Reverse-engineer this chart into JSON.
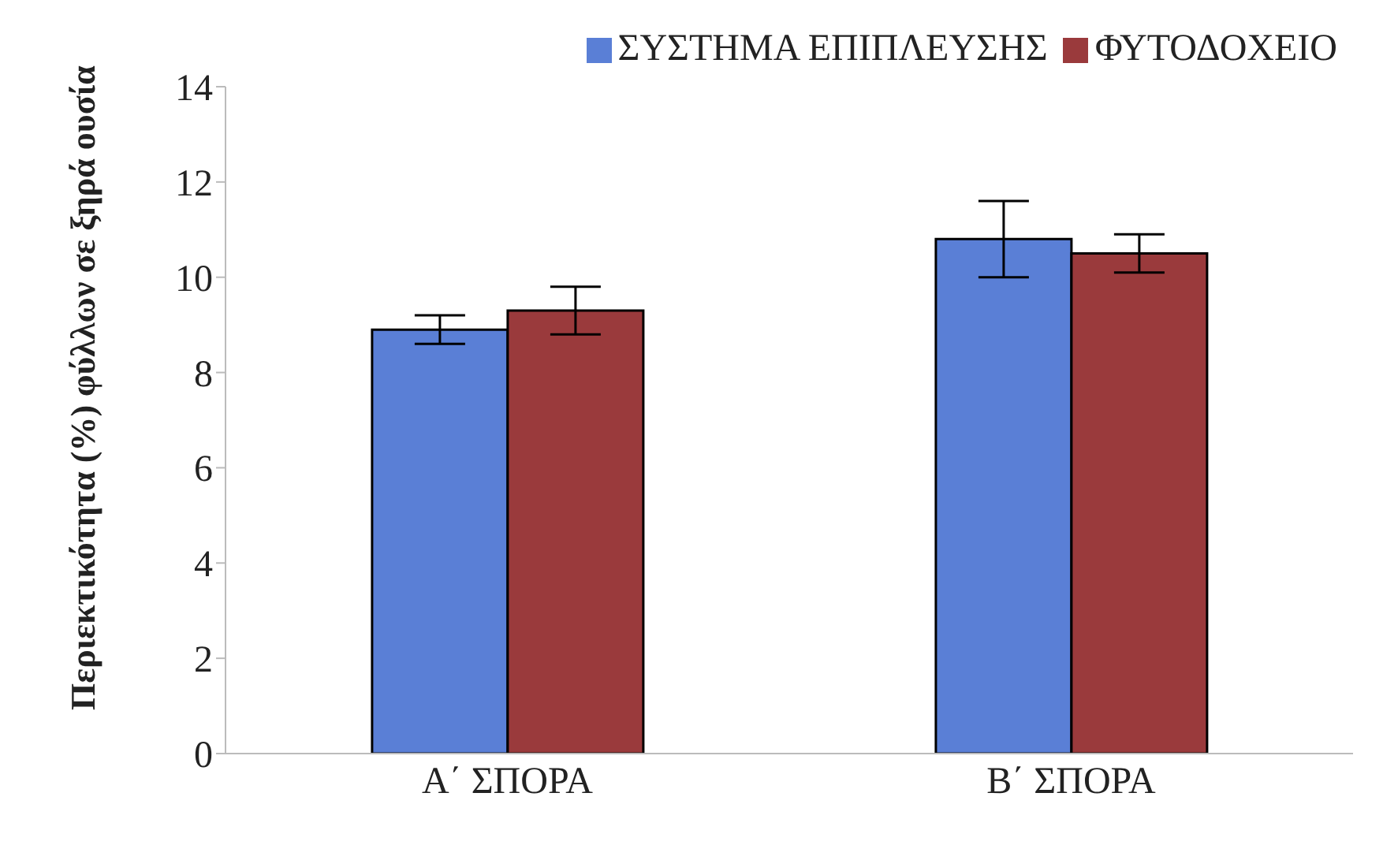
{
  "chart_data": {
    "type": "bar",
    "ylabel": "Περιεκτικότητα (%) φύλλων σε ξηρά ουσία",
    "categories": [
      "Α΄ ΣΠΟΡΑ",
      "Β΄ ΣΠΟΡΑ"
    ],
    "series": [
      {
        "name": "ΣΥΣΤΗΜΑ ΕΠΙΠΛΕΥΣΗΣ",
        "color": "#5a7fd6",
        "values": [
          8.9,
          10.8
        ],
        "errors": [
          0.3,
          0.8
        ]
      },
      {
        "name": "ΦΥΤΟΔΟΧΕΙΟ",
        "color": "#9a3a3c",
        "values": [
          9.3,
          10.5
        ],
        "errors": [
          0.5,
          0.4
        ]
      }
    ],
    "ylim": [
      0,
      14
    ],
    "yticks": [
      0,
      2,
      4,
      6,
      8,
      10,
      12,
      14
    ],
    "grid": false,
    "legend": "top"
  }
}
